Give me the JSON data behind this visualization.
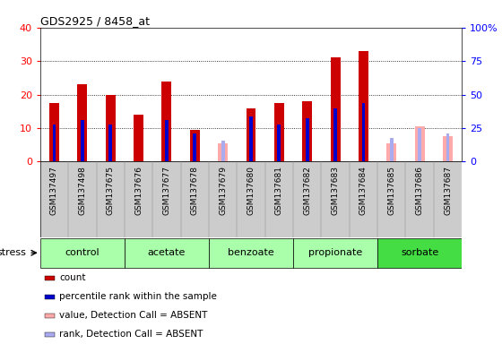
{
  "title": "GDS2925 / 8458_at",
  "samples": [
    "GSM137497",
    "GSM137498",
    "GSM137675",
    "GSM137676",
    "GSM137677",
    "GSM137678",
    "GSM137679",
    "GSM137680",
    "GSM137681",
    "GSM137682",
    "GSM137683",
    "GSM137684",
    "GSM137685",
    "GSM137686",
    "GSM137687"
  ],
  "groups": [
    {
      "name": "control",
      "indices": [
        0,
        1,
        2
      ],
      "color": "#aaffaa"
    },
    {
      "name": "acetate",
      "indices": [
        3,
        4,
        5
      ],
      "color": "#aaffaa"
    },
    {
      "name": "benzoate",
      "indices": [
        6,
        7,
        8
      ],
      "color": "#aaffaa"
    },
    {
      "name": "propionate",
      "indices": [
        9,
        10,
        11
      ],
      "color": "#aaffaa"
    },
    {
      "name": "sorbate",
      "indices": [
        12,
        13,
        14
      ],
      "color": "#44dd44"
    }
  ],
  "count": [
    17.5,
    23.0,
    19.8,
    14.0,
    24.0,
    9.5,
    null,
    16.0,
    17.5,
    18.0,
    31.0,
    33.0,
    null,
    null,
    null
  ],
  "percentile_pct": [
    27.5,
    31.0,
    27.5,
    null,
    31.0,
    21.0,
    null,
    33.5,
    27.5,
    32.5,
    40.0,
    43.5,
    null,
    null,
    null
  ],
  "value_absent": [
    null,
    null,
    null,
    null,
    null,
    null,
    5.5,
    null,
    null,
    null,
    null,
    null,
    5.5,
    10.5,
    7.5
  ],
  "rank_absent_pct": [
    null,
    null,
    null,
    null,
    null,
    null,
    16.0,
    null,
    null,
    null,
    null,
    null,
    17.5,
    25.0,
    21.0
  ],
  "count_color": "#cc0000",
  "percentile_color": "#0000cc",
  "value_absent_color": "#ffaaaa",
  "rank_absent_color": "#aaaaee",
  "ylim_left": [
    0,
    40
  ],
  "ylim_right": [
    0,
    100
  ],
  "yticks_left": [
    0,
    10,
    20,
    30,
    40
  ],
  "ytick_labels_left": [
    "0",
    "10",
    "20",
    "30",
    "40"
  ],
  "yticks_right": [
    0,
    25,
    50,
    75,
    100
  ],
  "ytick_labels_right": [
    "0",
    "25",
    "50",
    "75",
    "100%"
  ],
  "grid_dotted_at": [
    10,
    20,
    30
  ],
  "count_bar_width": 0.35,
  "rank_bar_width": 0.12,
  "background_samples": "#cccccc",
  "stress_label": "stress"
}
